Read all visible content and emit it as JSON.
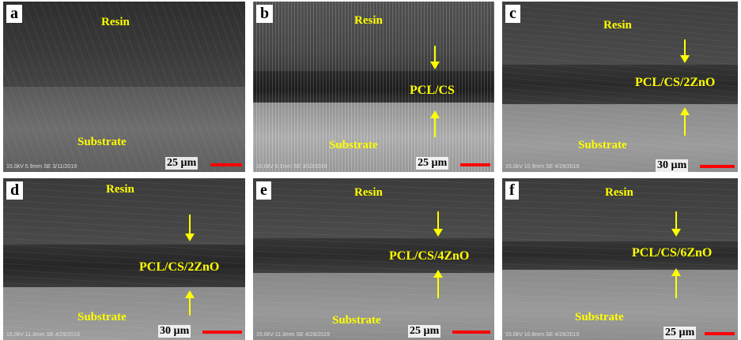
{
  "figure": {
    "panels": [
      {
        "letter": "a",
        "resin_label": "Resin",
        "substrate_label": "Substrate",
        "coating_label": "",
        "scale_label": "25 µm",
        "info": "15.0kV 5.9mm    SE  3/11/2019"
      },
      {
        "letter": "b",
        "resin_label": "Resin",
        "substrate_label": "Substrate",
        "coating_label": "PCL/CS",
        "scale_label": "25 µm",
        "info": "15.0kV 5.1mm    SE  3/10/2019"
      },
      {
        "letter": "c",
        "resin_label": "Resin",
        "substrate_label": "Substrate",
        "coating_label": "PCL/CS/2ZnO",
        "scale_label": "30 µm",
        "info": "15.0kV 10.9mm    SE  4/29/2019"
      },
      {
        "letter": "d",
        "resin_label": "Resin",
        "substrate_label": "Substrate",
        "coating_label": "PCL/CS/2ZnO",
        "scale_label": "30 µm",
        "info": "15.0kV 11.3mm    SE  4/29/2019"
      },
      {
        "letter": "e",
        "resin_label": "Resin",
        "substrate_label": "Substrate",
        "coating_label": "PCL/CS/4ZnO",
        "scale_label": "25 µm",
        "info": "15.0kV 11.3mm    SE  4/29/2019"
      },
      {
        "letter": "f",
        "resin_label": "Resin",
        "substrate_label": "Substrate",
        "coating_label": "PCL/CS/6ZnO",
        "scale_label": "25 µm",
        "info": "15.0kV 10.8mm    SE  4/29/2019"
      }
    ],
    "colors": {
      "label": "#ffff00",
      "scale_bar": "#ff0000",
      "letter_box": "#ffffff"
    }
  }
}
